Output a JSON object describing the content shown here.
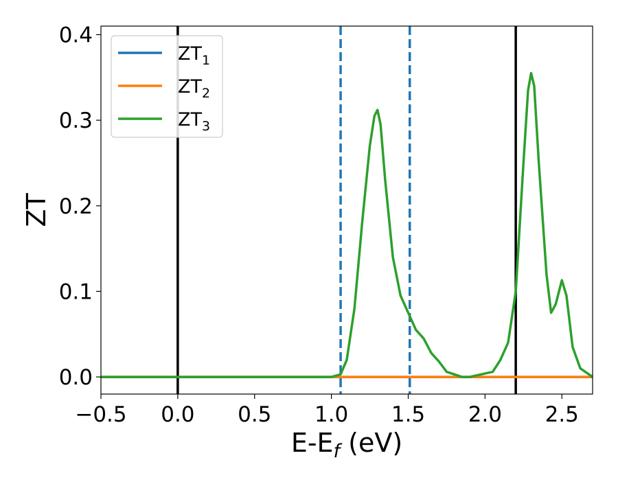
{
  "chart_data": {
    "type": "line",
    "title": "",
    "xlabel": "E-E",
    "xlabel_sub": "f",
    "xlabel_unit": " (eV)",
    "ylabel": "ZT",
    "xlim": [
      -0.5,
      2.7
    ],
    "ylim": [
      -0.02,
      0.41
    ],
    "xticks": [
      -0.5,
      0.0,
      0.5,
      1.0,
      1.5,
      2.0,
      2.5
    ],
    "xtick_labels": [
      "−0.5",
      "0.0",
      "0.5",
      "1.0",
      "1.5",
      "2.0",
      "2.5"
    ],
    "yticks": [
      0.0,
      0.1,
      0.2,
      0.3,
      0.4
    ],
    "ytick_labels": [
      "0.0",
      "0.1",
      "0.2",
      "0.3",
      "0.4"
    ],
    "grid": false,
    "legend_position": "top-left",
    "vertical_lines": [
      {
        "x": 0.0,
        "style": "solid",
        "color": "#000000"
      },
      {
        "x": 1.06,
        "style": "dashed",
        "color": "#1f77b4"
      },
      {
        "x": 1.51,
        "style": "dashed",
        "color": "#1f77b4"
      },
      {
        "x": 2.2,
        "style": "solid",
        "color": "#000000"
      }
    ],
    "series": [
      {
        "name": "ZT",
        "name_sub": "1",
        "color": "#1f77b4",
        "x": [
          -0.5,
          2.7
        ],
        "y": [
          0.0,
          0.0
        ]
      },
      {
        "name": "ZT",
        "name_sub": "2",
        "color": "#ff7f0e",
        "x": [
          -0.5,
          2.7
        ],
        "y": [
          0.0,
          0.0
        ]
      },
      {
        "name": "ZT",
        "name_sub": "3",
        "color": "#2ca02c",
        "x": [
          -0.5,
          1.0,
          1.06,
          1.1,
          1.15,
          1.2,
          1.25,
          1.28,
          1.3,
          1.32,
          1.35,
          1.4,
          1.45,
          1.5,
          1.55,
          1.6,
          1.65,
          1.7,
          1.75,
          1.8,
          1.85,
          1.9,
          1.95,
          2.0,
          2.05,
          2.1,
          2.15,
          2.2,
          2.25,
          2.28,
          2.3,
          2.32,
          2.35,
          2.4,
          2.43,
          2.46,
          2.5,
          2.53,
          2.57,
          2.62,
          2.7
        ],
        "y": [
          0.0,
          0.0,
          0.003,
          0.02,
          0.08,
          0.18,
          0.27,
          0.305,
          0.312,
          0.295,
          0.23,
          0.14,
          0.095,
          0.075,
          0.055,
          0.045,
          0.028,
          0.018,
          0.006,
          0.003,
          0.0,
          0.0,
          0.002,
          0.004,
          0.006,
          0.02,
          0.04,
          0.1,
          0.25,
          0.335,
          0.355,
          0.34,
          0.25,
          0.12,
          0.075,
          0.085,
          0.113,
          0.095,
          0.035,
          0.01,
          0.0
        ]
      }
    ]
  }
}
